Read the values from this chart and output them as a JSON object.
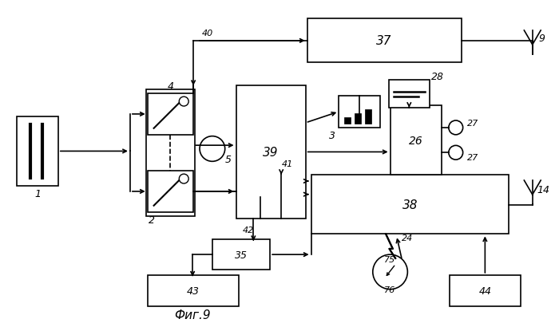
{
  "bg_color": "#ffffff",
  "fig_width": 7.0,
  "fig_height": 4.06,
  "dpi": 100,
  "caption": "Фиг.9"
}
